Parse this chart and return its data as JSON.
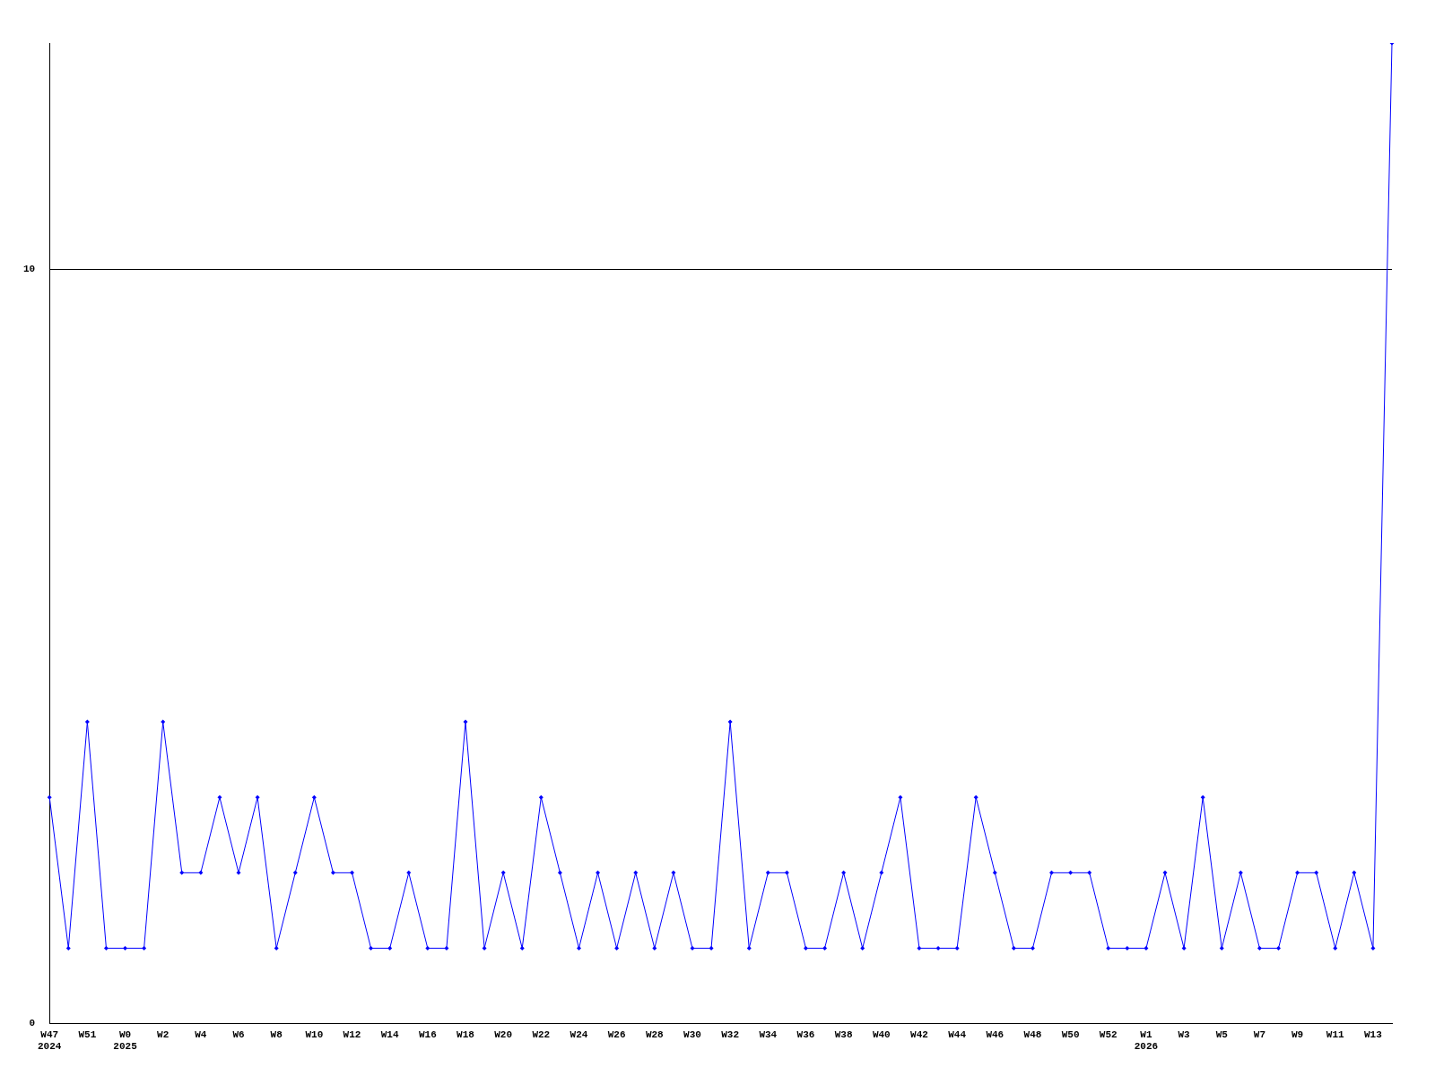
{
  "chart_data": {
    "type": "line",
    "categories": [
      "W47\n2024",
      null,
      "W51",
      null,
      "W0\n2025",
      null,
      "W2",
      null,
      "W4",
      null,
      "W6",
      null,
      "W8",
      null,
      "W10",
      null,
      "W12",
      null,
      "W14",
      null,
      "W16",
      null,
      "W18",
      null,
      "W20",
      null,
      "W22",
      null,
      "W24",
      null,
      "W26",
      null,
      "W28",
      null,
      "W30",
      null,
      "W32",
      null,
      "W34",
      null,
      "W36",
      null,
      "W38",
      null,
      "W40",
      null,
      "W42",
      null,
      "W44",
      null,
      "W46",
      null,
      "W48",
      null,
      "W50",
      null,
      "W52",
      null,
      "W1\n2026",
      null,
      "W3",
      null,
      "W5",
      null,
      "W7",
      null,
      "W9",
      null,
      "W11",
      null,
      "W13",
      null
    ],
    "series": [
      {
        "color": "#0000ff",
        "values": [
          3,
          1,
          4,
          1,
          1,
          1,
          4,
          2,
          2,
          3,
          2,
          3,
          1,
          2,
          3,
          2,
          2,
          1,
          1,
          2,
          1,
          1,
          4,
          1,
          2,
          1,
          3,
          2,
          1,
          2,
          1,
          2,
          1,
          2,
          1,
          1,
          4,
          1,
          2,
          2,
          1,
          1,
          2,
          1,
          2,
          3,
          1,
          1,
          1,
          3,
          2,
          1,
          1,
          2,
          2,
          2,
          1,
          1,
          1,
          2,
          1,
          3,
          1,
          2,
          1,
          1,
          2,
          2,
          1,
          2,
          1,
          13
        ]
      }
    ],
    "ylim": [
      0,
      13
    ],
    "yticks": [
      0,
      10
    ],
    "grid": "y",
    "legend": false,
    "marker": "diamond"
  }
}
